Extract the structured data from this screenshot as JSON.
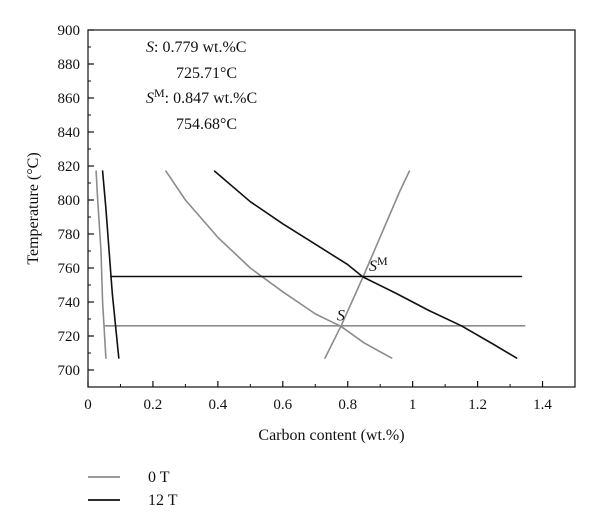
{
  "chart_data": {
    "type": "line",
    "title": "",
    "xlabel": "Carbon content (wt.%)",
    "ylabel": "Temperature (°C)",
    "xlim": [
      0,
      1.5
    ],
    "ylim": [
      690,
      900
    ],
    "x_ticks": [
      0,
      0.2,
      0.4,
      0.6,
      0.8,
      1,
      1.2,
      1.4
    ],
    "x_tick_labels": [
      "0",
      "0.2",
      "0.4",
      "0.6",
      "0.8",
      "1",
      "1.2",
      "1.4"
    ],
    "y_ticks": [
      700,
      720,
      740,
      760,
      780,
      800,
      820,
      840,
      860,
      880,
      900
    ],
    "y_tick_labels": [
      "700",
      "720",
      "740",
      "760",
      "780",
      "800",
      "820",
      "840",
      "860",
      "880",
      "900"
    ],
    "grid": false,
    "legend_position": "bottom-left",
    "legend": [
      {
        "label": "0 T",
        "color": "#8c8c8c"
      },
      {
        "label": "12 T",
        "color": "#111111"
      }
    ],
    "series": [
      {
        "group": "0 T",
        "color": "#8c8c8c",
        "points": [
          [
            0.025,
            817
          ],
          [
            0.03,
            800
          ],
          [
            0.04,
            770
          ],
          [
            0.045,
            740
          ],
          [
            0.055,
            707
          ]
        ]
      },
      {
        "group": "0 T",
        "color": "#8c8c8c",
        "points": [
          [
            0.24,
            817
          ],
          [
            0.3,
            800
          ],
          [
            0.4,
            778
          ],
          [
            0.5,
            760
          ],
          [
            0.6,
            746
          ],
          [
            0.7,
            733
          ],
          [
            0.779,
            725.71
          ],
          [
            0.85,
            716
          ],
          [
            0.935,
            707
          ]
        ]
      },
      {
        "group": "0 T",
        "color": "#8c8c8c",
        "points": [
          [
            0.73,
            707
          ],
          [
            0.779,
            725.71
          ],
          [
            0.847,
            754.68
          ],
          [
            0.96,
            805
          ],
          [
            0.99,
            817
          ]
        ]
      },
      {
        "group": "0 T",
        "color": "#8c8c8c",
        "points": [
          [
            0.05,
            726
          ],
          [
            1.345,
            726
          ]
        ]
      },
      {
        "group": "12 T",
        "color": "#111111",
        "points": [
          [
            0.045,
            817
          ],
          [
            0.055,
            795
          ],
          [
            0.065,
            770
          ],
          [
            0.075,
            745
          ],
          [
            0.095,
            707
          ]
        ]
      },
      {
        "group": "12 T",
        "color": "#111111",
        "points": [
          [
            0.39,
            817
          ],
          [
            0.5,
            799
          ],
          [
            0.6,
            786
          ],
          [
            0.7,
            774
          ],
          [
            0.8,
            762
          ],
          [
            0.847,
            754.68
          ],
          [
            0.95,
            745
          ],
          [
            1.05,
            735
          ],
          [
            1.15,
            726
          ],
          [
            1.25,
            715
          ],
          [
            1.32,
            707
          ]
        ]
      },
      {
        "group": "12 T",
        "color": "#111111",
        "points": [
          [
            0.07,
            755
          ],
          [
            1.335,
            755
          ]
        ]
      }
    ],
    "point_labels": [
      {
        "text": "S",
        "x": 0.779,
        "y": 725.71
      },
      {
        "text": "S",
        "superscript": "M",
        "x": 0.847,
        "y": 754.68
      }
    ],
    "annotations": [
      {
        "italic": "S",
        "sup": "",
        "text": ": 0.779 wt.%C"
      },
      {
        "italic": "",
        "sup": "",
        "text": "725.71°C"
      },
      {
        "italic": "S",
        "sup": "M",
        "text": ": 0.847 wt.%C"
      },
      {
        "italic": "",
        "sup": "",
        "text": "754.68°C"
      }
    ]
  }
}
